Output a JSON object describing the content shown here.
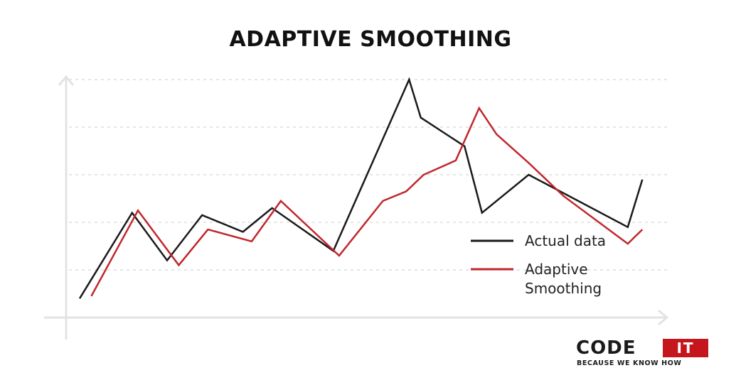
{
  "chart_data": {
    "type": "line",
    "title": "ADAPTIVE SMOOTHING",
    "xlabel": "",
    "ylabel": "",
    "grid": true,
    "legend_position": "right",
    "xlim": [
      0,
      20
    ],
    "ylim": [
      0,
      5
    ],
    "series": [
      {
        "name": "Actual data",
        "color": "#1a1a1a",
        "points": [
          [
            0.0,
            0.4
          ],
          [
            1.8,
            2.2
          ],
          [
            3.0,
            1.2
          ],
          [
            4.2,
            2.15
          ],
          [
            5.6,
            1.8
          ],
          [
            6.6,
            2.3
          ],
          [
            8.7,
            1.4
          ],
          [
            11.3,
            5.0
          ],
          [
            11.7,
            4.2
          ],
          [
            13.2,
            3.6
          ],
          [
            13.8,
            2.2
          ],
          [
            15.4,
            3.0
          ],
          [
            18.8,
            1.9
          ],
          [
            19.3,
            2.9
          ]
        ]
      },
      {
        "name": "Adaptive Smoothing",
        "color": "#c0272d",
        "points": [
          [
            0.4,
            0.45
          ],
          [
            2.0,
            2.25
          ],
          [
            3.4,
            1.1
          ],
          [
            4.4,
            1.85
          ],
          [
            5.9,
            1.6
          ],
          [
            6.9,
            2.45
          ],
          [
            8.9,
            1.3
          ],
          [
            10.4,
            2.45
          ],
          [
            11.2,
            2.65
          ],
          [
            11.8,
            3.0
          ],
          [
            12.9,
            3.3
          ],
          [
            13.7,
            4.4
          ],
          [
            14.3,
            3.85
          ],
          [
            15.4,
            3.25
          ],
          [
            16.6,
            2.55
          ],
          [
            18.8,
            1.55
          ],
          [
            19.3,
            1.85
          ]
        ]
      }
    ]
  },
  "brand": {
    "code": "CODE",
    "it": "IT",
    "tagline": "BECAUSE WE KNOW HOW"
  },
  "colors": {
    "axis": "#e3e3e3",
    "grid": "#dddddd",
    "brand_red": "#c4161c"
  }
}
